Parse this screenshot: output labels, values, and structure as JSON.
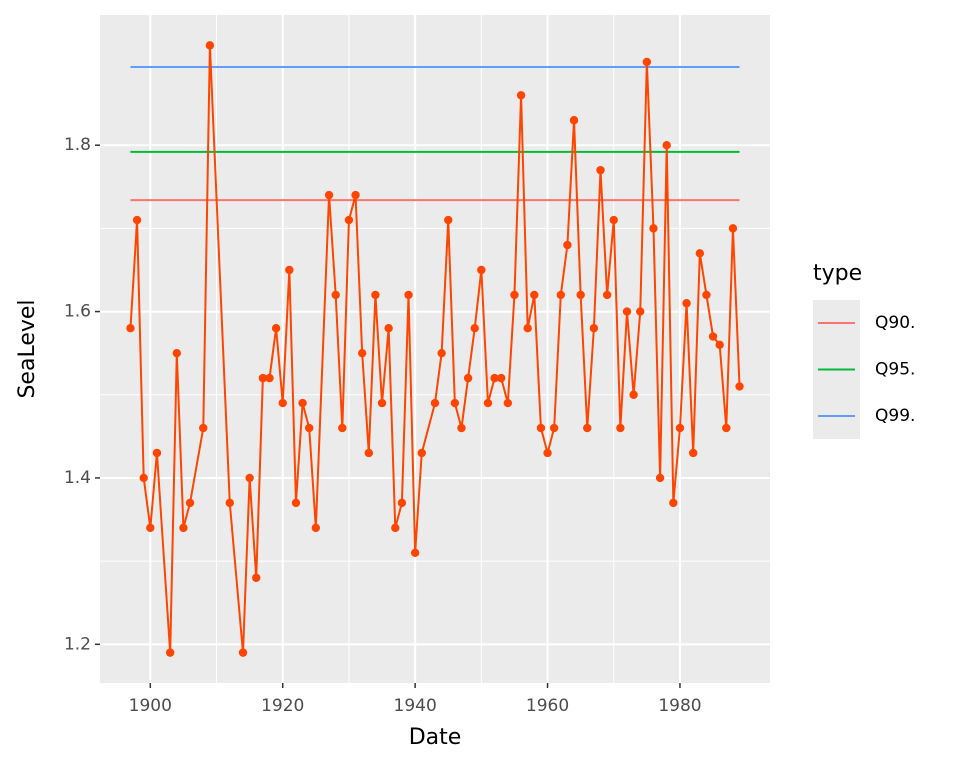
{
  "chart_data": {
    "type": "line",
    "x_label": "Date",
    "y_label": "SeaLevel",
    "x": [
      1897,
      1898,
      1899,
      1900,
      1901,
      1903,
      1904,
      1905,
      1906,
      1908,
      1909,
      1912,
      1914,
      1915,
      1916,
      1917,
      1918,
      1919,
      1920,
      1921,
      1922,
      1923,
      1924,
      1925,
      1927,
      1928,
      1929,
      1930,
      1931,
      1932,
      1933,
      1934,
      1935,
      1936,
      1937,
      1938,
      1939,
      1940,
      1941,
      1943,
      1944,
      1945,
      1946,
      1947,
      1948,
      1949,
      1950,
      1951,
      1952,
      1953,
      1954,
      1955,
      1956,
      1957,
      1958,
      1959,
      1960,
      1961,
      1962,
      1963,
      1964,
      1965,
      1966,
      1967,
      1968,
      1969,
      1970,
      1971,
      1972,
      1973,
      1974,
      1975,
      1976,
      1977,
      1978,
      1979,
      1980,
      1981,
      1982,
      1983,
      1984,
      1985,
      1986,
      1987,
      1988,
      1989
    ],
    "values": [
      1.58,
      1.71,
      1.4,
      1.34,
      1.43,
      1.19,
      1.55,
      1.34,
      1.37,
      1.46,
      1.92,
      1.37,
      1.19,
      1.4,
      1.28,
      1.52,
      1.52,
      1.58,
      1.49,
      1.65,
      1.37,
      1.49,
      1.46,
      1.34,
      1.74,
      1.62,
      1.46,
      1.71,
      1.74,
      1.55,
      1.43,
      1.62,
      1.49,
      1.58,
      1.34,
      1.37,
      1.62,
      1.31,
      1.43,
      1.49,
      1.55,
      1.71,
      1.49,
      1.46,
      1.52,
      1.58,
      1.65,
      1.49,
      1.52,
      1.52,
      1.49,
      1.62,
      1.86,
      1.58,
      1.62,
      1.46,
      1.43,
      1.46,
      1.62,
      1.68,
      1.83,
      1.62,
      1.46,
      1.58,
      1.77,
      1.62,
      1.71,
      1.46,
      1.6,
      1.5,
      1.6,
      1.9,
      1.7,
      1.4,
      1.8,
      1.37,
      1.46,
      1.61,
      1.43,
      1.67,
      1.62,
      1.57,
      1.56,
      1.46,
      1.7,
      1.51
    ],
    "color": "#ff4500",
    "legend_title": "type",
    "series": [
      {
        "name": "Q90.",
        "color": "#f8766d",
        "value": 1.734
      },
      {
        "name": "Q95.",
        "color": "#00ba38",
        "value": 1.792
      },
      {
        "name": "Q99.",
        "color": "#619cff",
        "value": 1.894
      }
    ],
    "xlim": [
      1892.4,
      1993.6
    ],
    "ylim": [
      1.1535,
      1.9565
    ],
    "xticks": [
      1900,
      1920,
      1940,
      1960,
      1980
    ],
    "yticks": [
      1.2,
      1.4,
      1.6,
      1.8
    ],
    "grid": true
  }
}
